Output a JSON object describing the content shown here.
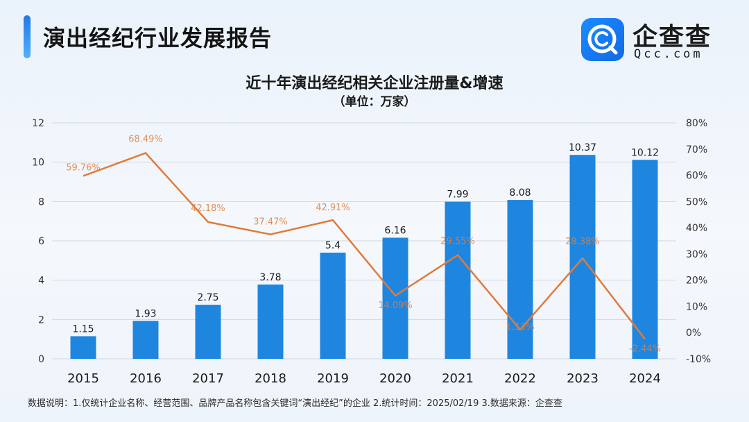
{
  "header": {
    "title": "演出经纪行业发展报告",
    "accent_color": "#1f7ae0"
  },
  "logo": {
    "icon": "qcc-logo-icon",
    "name": "企查查",
    "sub": "Qcc.com"
  },
  "chart_data": {
    "type": "bar+line",
    "title": "近十年演出经纪相关企业注册量&增速",
    "subtitle": "（单位：万家）",
    "categories": [
      "2015",
      "2016",
      "2017",
      "2018",
      "2019",
      "2020",
      "2021",
      "2022",
      "2023",
      "2024"
    ],
    "series": [
      {
        "name": "注册量（万家）",
        "type": "bar",
        "axis": "left",
        "color": "#1f86e0",
        "values": [
          1.15,
          1.93,
          2.75,
          3.78,
          5.4,
          6.16,
          7.99,
          8.08,
          10.37,
          10.12
        ],
        "labels": [
          "1.15",
          "1.93",
          "2.75",
          "3.78",
          "5.4",
          "6.16",
          "7.99",
          "8.08",
          "10.37",
          "10.12"
        ]
      },
      {
        "name": "增速",
        "type": "line",
        "axis": "right",
        "color": "#e07b39",
        "values": [
          59.76,
          68.49,
          42.18,
          37.47,
          42.91,
          14.09,
          29.55,
          1.13,
          28.38,
          -2.44
        ],
        "labels": [
          "59.76%",
          "68.49%",
          "42.18%",
          "37.47%",
          "42.91%",
          "14.09%",
          "29.55%",
          "1.13%",
          "28.38%",
          "-2.44%"
        ]
      }
    ],
    "y_left": {
      "min": 0,
      "max": 12,
      "ticks": [
        "0",
        "2",
        "4",
        "6",
        "8",
        "10",
        "12"
      ]
    },
    "y_right": {
      "min": -10,
      "max": 80,
      "ticks": [
        "-10%",
        "0%",
        "10%",
        "20%",
        "30%",
        "40%",
        "50%",
        "60%",
        "70%",
        "80%"
      ]
    },
    "grid": true
  },
  "footnote": "数据说明：1.仅统计企业名称、经营范围、品牌产品名称包含关键词“演出经纪”的企业   2.统计时间：2025/02/19   3.数据来源：企查查"
}
